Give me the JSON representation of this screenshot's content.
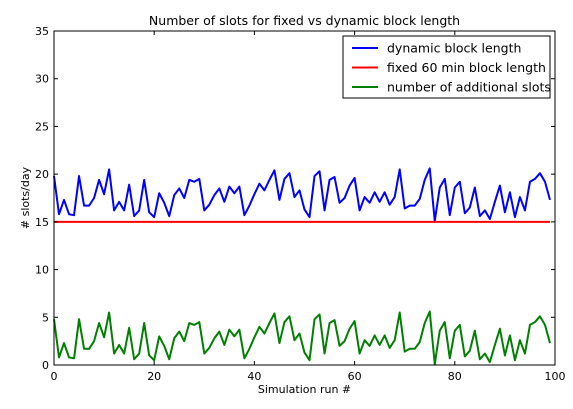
{
  "chart_data": {
    "type": "line",
    "title": "Number of slots for fixed vs dynamic block length",
    "xlabel": "Simulation run #",
    "ylabel": "# slots/day",
    "xlim": [
      0,
      100
    ],
    "ylim": [
      0,
      35
    ],
    "xticks": [
      0,
      20,
      40,
      60,
      80,
      100
    ],
    "yticks": [
      0,
      5,
      10,
      15,
      20,
      25,
      30,
      35
    ],
    "grid": false,
    "legend_position": "top-right",
    "x": [
      0,
      1,
      2,
      3,
      4,
      5,
      6,
      7,
      8,
      9,
      10,
      11,
      12,
      13,
      14,
      15,
      16,
      17,
      18,
      19,
      20,
      21,
      22,
      23,
      24,
      25,
      26,
      27,
      28,
      29,
      30,
      31,
      32,
      33,
      34,
      35,
      36,
      37,
      38,
      39,
      40,
      41,
      42,
      43,
      44,
      45,
      46,
      47,
      48,
      49,
      50,
      51,
      52,
      53,
      54,
      55,
      56,
      57,
      58,
      59,
      60,
      61,
      62,
      63,
      64,
      65,
      66,
      67,
      68,
      69,
      70,
      71,
      72,
      73,
      74,
      75,
      76,
      77,
      78,
      79,
      80,
      81,
      82,
      83,
      84,
      85,
      86,
      87,
      88,
      89,
      90,
      91,
      92,
      93,
      94,
      95,
      96,
      97,
      98,
      99
    ],
    "series": [
      {
        "name": "dynamic block length",
        "color": "#0000ff",
        "values": [
          19.8,
          15.8,
          17.3,
          15.8,
          15.7,
          19.8,
          16.7,
          16.7,
          17.5,
          19.4,
          17.9,
          20.5,
          16.2,
          17.1,
          16.2,
          18.9,
          15.6,
          16.2,
          19.4,
          16.0,
          15.5,
          18.0,
          17.0,
          15.6,
          17.8,
          18.5,
          17.5,
          19.4,
          19.2,
          19.5,
          16.2,
          16.8,
          17.8,
          18.5,
          17.1,
          18.7,
          18.0,
          18.7,
          15.7,
          16.7,
          17.9,
          19.0,
          18.3,
          19.4,
          20.4,
          17.3,
          19.5,
          20.1,
          17.6,
          18.3,
          16.3,
          15.5,
          19.8,
          20.3,
          16.2,
          19.4,
          19.7,
          17.0,
          17.5,
          18.8,
          19.6,
          16.2,
          17.6,
          17.0,
          18.1,
          17.1,
          18.1,
          16.8,
          17.6,
          20.5,
          16.4,
          16.7,
          16.7,
          17.4,
          19.4,
          20.6,
          15.1,
          18.6,
          19.5,
          15.7,
          18.6,
          19.2,
          15.9,
          16.5,
          18.6,
          15.6,
          16.2,
          15.3,
          17.1,
          18.8,
          16.0,
          18.1,
          15.5,
          17.6,
          16.2,
          19.2,
          19.5,
          20.1,
          19.2,
          17.3
        ]
      },
      {
        "name": "fixed 60 min block length",
        "color": "#ff0000",
        "values": [
          15,
          15,
          15,
          15,
          15,
          15,
          15,
          15,
          15,
          15,
          15,
          15,
          15,
          15,
          15,
          15,
          15,
          15,
          15,
          15,
          15,
          15,
          15,
          15,
          15,
          15,
          15,
          15,
          15,
          15,
          15,
          15,
          15,
          15,
          15,
          15,
          15,
          15,
          15,
          15,
          15,
          15,
          15,
          15,
          15,
          15,
          15,
          15,
          15,
          15,
          15,
          15,
          15,
          15,
          15,
          15,
          15,
          15,
          15,
          15,
          15,
          15,
          15,
          15,
          15,
          15,
          15,
          15,
          15,
          15,
          15,
          15,
          15,
          15,
          15,
          15,
          15,
          15,
          15,
          15,
          15,
          15,
          15,
          15,
          15,
          15,
          15,
          15,
          15,
          15,
          15,
          15,
          15,
          15,
          15,
          15,
          15,
          15,
          15,
          15
        ]
      },
      {
        "name": "number of additional slots",
        "color": "#008000",
        "values": [
          4.8,
          0.8,
          2.3,
          0.8,
          0.7,
          4.8,
          1.7,
          1.7,
          2.5,
          4.4,
          2.9,
          5.5,
          1.2,
          2.1,
          1.2,
          3.9,
          0.6,
          1.2,
          4.4,
          1.0,
          0.5,
          3.0,
          2.0,
          0.6,
          2.8,
          3.5,
          2.5,
          4.4,
          4.2,
          4.5,
          1.2,
          1.8,
          2.8,
          3.5,
          2.1,
          3.7,
          3.0,
          3.7,
          0.7,
          1.7,
          2.9,
          4.0,
          3.3,
          4.4,
          5.4,
          2.3,
          4.5,
          5.1,
          2.6,
          3.3,
          1.3,
          0.5,
          4.8,
          5.3,
          1.2,
          4.4,
          4.7,
          2.0,
          2.5,
          3.8,
          4.6,
          1.2,
          2.6,
          2.0,
          3.1,
          2.1,
          3.1,
          1.8,
          2.6,
          5.5,
          1.4,
          1.7,
          1.7,
          2.4,
          4.4,
          5.6,
          0.1,
          3.6,
          4.5,
          0.7,
          3.6,
          4.2,
          0.9,
          1.5,
          3.6,
          0.6,
          1.2,
          0.3,
          2.1,
          3.8,
          1.0,
          3.1,
          0.5,
          2.6,
          1.2,
          4.2,
          4.5,
          5.1,
          4.2,
          2.3
        ]
      }
    ]
  }
}
